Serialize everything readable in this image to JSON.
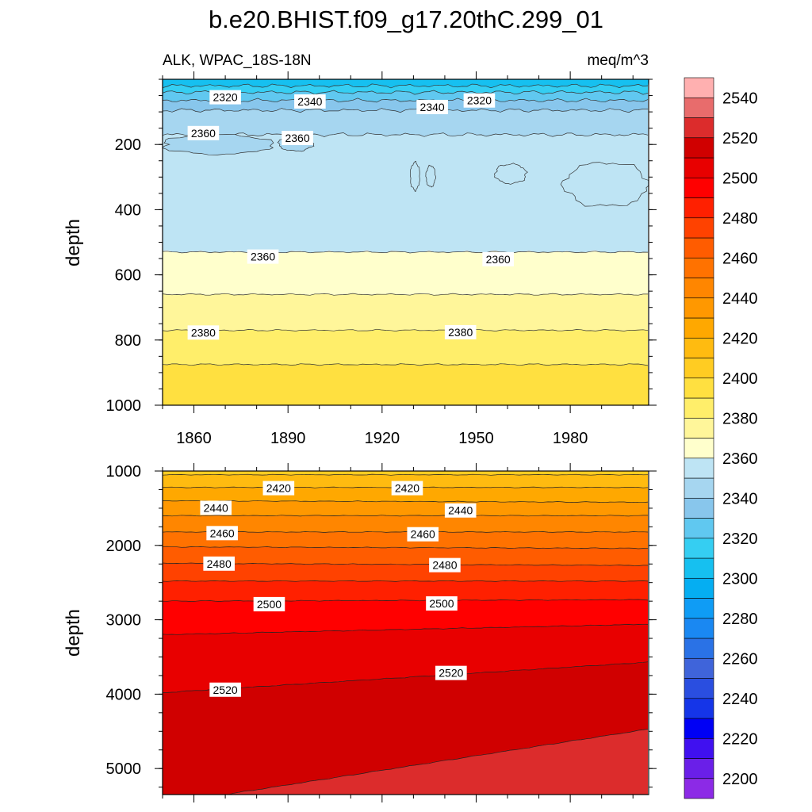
{
  "chart_data": {
    "type": "heatmap",
    "title": "b.e20.BHIST.f09_g17.20thC.299_01",
    "variable_label": "ALK, WPAC_18S-18N",
    "units_label": "meq/m^3",
    "ylabel": "depth",
    "x": {
      "range": [
        1850,
        2005
      ],
      "ticks": [
        "1860",
        "1890",
        "1920",
        "1950",
        "1980"
      ],
      "tick_values": [
        1860,
        1890,
        1920,
        1950,
        1980
      ]
    },
    "colorbar": {
      "levels": [
        2200,
        2210,
        2220,
        2230,
        2240,
        2250,
        2260,
        2270,
        2280,
        2290,
        2300,
        2310,
        2320,
        2330,
        2340,
        2350,
        2360,
        2370,
        2380,
        2390,
        2400,
        2410,
        2420,
        2430,
        2440,
        2450,
        2460,
        2470,
        2480,
        2490,
        2500,
        2510,
        2520,
        2530,
        2540,
        2550
      ],
      "labels": [
        "2200",
        "2220",
        "2240",
        "2260",
        "2280",
        "2300",
        "2320",
        "2340",
        "2360",
        "2380",
        "2400",
        "2420",
        "2440",
        "2460",
        "2480",
        "2500",
        "2520",
        "2540"
      ],
      "colors": [
        "#8c2ae6",
        "#6a1fe8",
        "#4010f0",
        "#0000f5",
        "#1535e8",
        "#2a4ee0",
        "#3f64da",
        "#2a72e6",
        "#1a88f2",
        "#0f9cf5",
        "#05aef2",
        "#16c0f0",
        "#35cef2",
        "#60c8f0",
        "#88c6ec",
        "#a6d6f0",
        "#bee4f4",
        "#ffffcc",
        "#fff69a",
        "#ffee6a",
        "#ffe040",
        "#ffcc22",
        "#ffbb10",
        "#ffa800",
        "#ff9800",
        "#ff8600",
        "#ff7200",
        "#ff5c00",
        "#ff4200",
        "#ff2000",
        "#ff0000",
        "#e80000",
        "#d00000",
        "#dc2c2c",
        "#e86c6c",
        "#ffb0b0"
      ]
    },
    "panels": [
      {
        "name": "upper",
        "y_range": [
          0,
          1000
        ],
        "y_ticks": [
          "200",
          "400",
          "600",
          "800",
          "1000"
        ],
        "y_tick_values": [
          200,
          400,
          600,
          800,
          1000
        ],
        "bands": [
          {
            "from": 0,
            "to": 20,
            "value": 2300
          },
          {
            "from": 20,
            "to": 40,
            "value": 2310
          },
          {
            "from": 40,
            "to": 65,
            "value": 2320
          },
          {
            "from": 65,
            "to": 95,
            "value": 2330
          },
          {
            "from": 95,
            "to": 170,
            "value": 2340
          },
          {
            "from": 170,
            "to": 530,
            "value": 2350
          },
          {
            "from": 530,
            "to": 660,
            "value": 2360
          },
          {
            "from": 660,
            "to": 770,
            "value": 2370
          },
          {
            "from": 770,
            "to": 875,
            "value": 2380
          },
          {
            "from": 875,
            "to": 1000,
            "value": 2390
          }
        ],
        "patches": [
          {
            "x": [
              1850,
              1885
            ],
            "depth": [
              170,
              230
            ],
            "value": 2340
          },
          {
            "x": [
              1887,
              1898
            ],
            "depth": [
              175,
              220
            ],
            "value": 2340
          },
          {
            "x": [
              1978,
              2005
            ],
            "depth": [
              255,
              390
            ],
            "value": 2355
          },
          {
            "x": [
              1956,
              1966
            ],
            "depth": [
              260,
              320
            ],
            "value": 2355
          },
          {
            "x": [
              1929,
              1932
            ],
            "depth": [
              255,
              340
            ],
            "value": 2355
          },
          {
            "x": [
              1934,
              1937
            ],
            "depth": [
              265,
              330
            ],
            "value": 2355
          }
        ],
        "contour_labels": [
          {
            "text": "2320",
            "x": 1870,
            "depth": 55
          },
          {
            "text": "2340",
            "x": 1897,
            "depth": 68
          },
          {
            "text": "2340",
            "x": 1936,
            "depth": 85
          },
          {
            "text": "2320",
            "x": 1951,
            "depth": 65
          },
          {
            "text": "2360",
            "x": 1863,
            "depth": 165
          },
          {
            "text": "2360",
            "x": 1893,
            "depth": 180
          },
          {
            "text": "2360",
            "x": 1882,
            "depth": 544
          },
          {
            "text": "2360",
            "x": 1957,
            "depth": 552
          },
          {
            "text": "2380",
            "x": 1863,
            "depth": 777
          },
          {
            "text": "2380",
            "x": 1945,
            "depth": 776
          }
        ]
      },
      {
        "name": "lower",
        "y_range": [
          1000,
          5350
        ],
        "y_ticks": [
          "1000",
          "2000",
          "3000",
          "4000",
          "5000"
        ],
        "y_tick_values": [
          1000,
          2000,
          3000,
          4000,
          5000
        ],
        "interfaces": [
          {
            "left": 1050,
            "right": 1050
          },
          {
            "left": 1220,
            "right": 1220
          },
          {
            "left": 1400,
            "right": 1420
          },
          {
            "left": 1600,
            "right": 1600
          },
          {
            "left": 1820,
            "right": 1820
          },
          {
            "left": 2020,
            "right": 2040
          },
          {
            "left": 2240,
            "right": 2270
          },
          {
            "left": 2480,
            "right": 2480
          },
          {
            "left": 2750,
            "right": 2730
          },
          {
            "left": 3200,
            "right": 3060
          },
          {
            "left": 3980,
            "right": 3570
          },
          {
            "left": 5480,
            "right": 4470
          }
        ],
        "band_values": [
          2400,
          2410,
          2420,
          2430,
          2440,
          2450,
          2460,
          2470,
          2480,
          2490,
          2500,
          2510,
          2520,
          2530
        ],
        "contour_labels": [
          {
            "text": "2420",
            "x": 1887,
            "depth": 1230
          },
          {
            "text": "2420",
            "x": 1928,
            "depth": 1230
          },
          {
            "text": "2440",
            "x": 1867,
            "depth": 1495
          },
          {
            "text": "2440",
            "x": 1945,
            "depth": 1530
          },
          {
            "text": "2460",
            "x": 1869,
            "depth": 1835
          },
          {
            "text": "2460",
            "x": 1933,
            "depth": 1850
          },
          {
            "text": "2480",
            "x": 1868,
            "depth": 2245
          },
          {
            "text": "2480",
            "x": 1940,
            "depth": 2265
          },
          {
            "text": "2500",
            "x": 1884,
            "depth": 2790
          },
          {
            "text": "2500",
            "x": 1939,
            "depth": 2780
          },
          {
            "text": "2520",
            "x": 1870,
            "depth": 3940
          },
          {
            "text": "2520",
            "x": 1942,
            "depth": 3715
          }
        ]
      }
    ]
  }
}
